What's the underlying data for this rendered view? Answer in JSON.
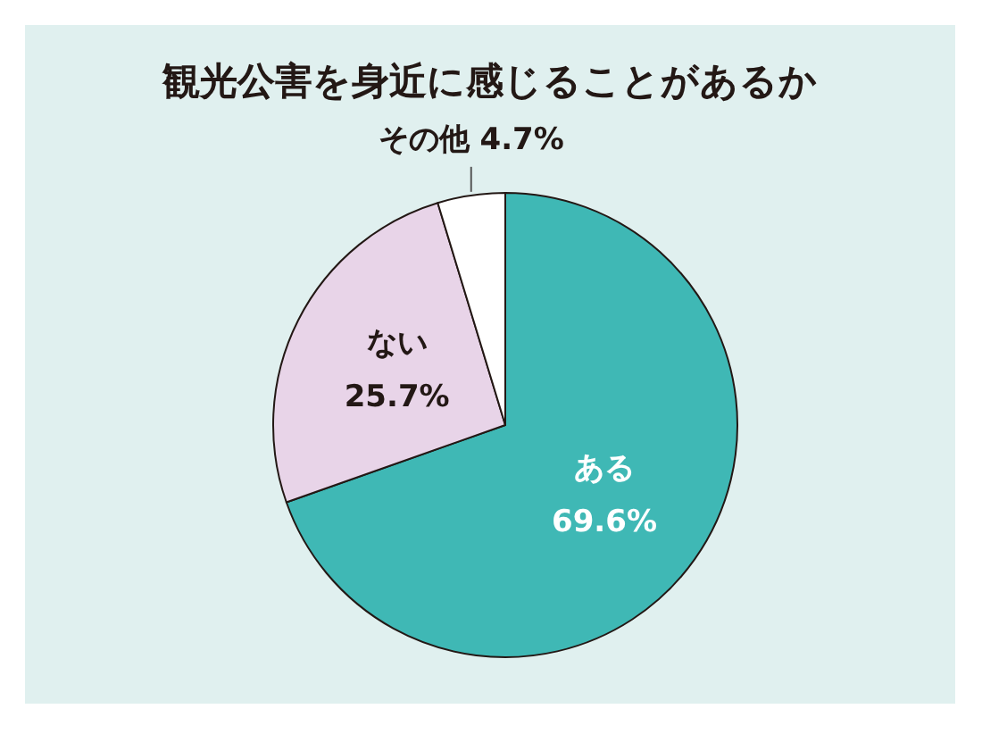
{
  "chart_data": {
    "type": "pie",
    "title": "観光公害を身近に感じることがあるか",
    "categories": [
      "ある",
      "ない",
      "その他"
    ],
    "values": [
      69.6,
      25.7,
      4.7
    ],
    "colors": [
      "#3fb8b5",
      "#e8d4e8",
      "#ffffff"
    ],
    "value_labels": [
      "69.6%",
      "25.7%",
      "4.7%"
    ]
  }
}
